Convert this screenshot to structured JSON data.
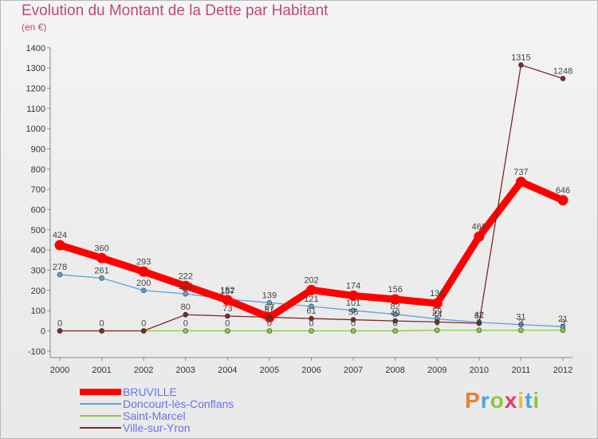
{
  "title": "Evolution du Montant de la Dette par Habitant",
  "subtitle": "(en €)",
  "brand": {
    "text": "Proxiti",
    "colors": [
      "#f07e2a",
      "#4aa5e0",
      "#8cc63f",
      "#e63a6a",
      "#f4b731",
      "#4aa5e0",
      "#8cc63f"
    ]
  },
  "chart_data": {
    "type": "line",
    "title": "Evolution du Montant de la Dette par Habitant",
    "ylabel": "(en €)",
    "xlabel": "",
    "x": [
      "2000",
      "2001",
      "2002",
      "2003",
      "2004",
      "2005",
      "2006",
      "2007",
      "2008",
      "2009",
      "2010",
      "2011",
      "2012"
    ],
    "ylim": [
      -100,
      1400
    ],
    "yticks": [
      -100,
      0,
      100,
      200,
      300,
      400,
      500,
      600,
      700,
      800,
      900,
      1000,
      1100,
      1200,
      1300,
      1400
    ],
    "grid": false,
    "legend": "bottom-left",
    "series": [
      {
        "name": "BRUVILLE",
        "color": "#ff0000",
        "width": "thick",
        "values": [
          424,
          360,
          293,
          222,
          152,
          67,
          202,
          174,
          156,
          136,
          466,
          737,
          646
        ],
        "labels": [
          "424",
          "360",
          "293",
          "222",
          "152",
          "67",
          "202",
          "174",
          "156",
          "136",
          "466",
          "737",
          "646"
        ]
      },
      {
        "name": "Doncourt-lès-Conflans",
        "color": "#5ba3d6",
        "width": "thin",
        "values": [
          278,
          261,
          200,
          183,
          157,
          139,
          121,
          101,
          82,
          59,
          42,
          31,
          21
        ],
        "labels": [
          "278",
          "261",
          "200",
          "183",
          "157",
          "139",
          "121",
          "101",
          "82",
          "59",
          "42",
          "31",
          "21"
        ]
      },
      {
        "name": "Saint-Marcel",
        "color": "#88cc44",
        "width": "thin",
        "values": [
          0,
          0,
          0,
          0,
          0,
          0,
          0,
          0,
          0,
          3,
          3,
          3,
          3
        ],
        "labels": [
          "",
          "",
          "",
          "0",
          "0",
          "0",
          "0",
          "0",
          "0",
          "3",
          "3",
          "3",
          "3"
        ]
      },
      {
        "name": "Ville-sur-Yron",
        "color": "#7a2a2a",
        "width": "thin",
        "values": [
          0,
          0,
          0,
          80,
          73,
          67,
          61,
          55,
          49,
          44,
          37,
          1315,
          1248
        ],
        "labels": [
          "0",
          "0",
          "0",
          "80",
          "73",
          "67",
          "61",
          "55",
          "49",
          "44",
          "37",
          "1315",
          "1248"
        ]
      }
    ]
  }
}
